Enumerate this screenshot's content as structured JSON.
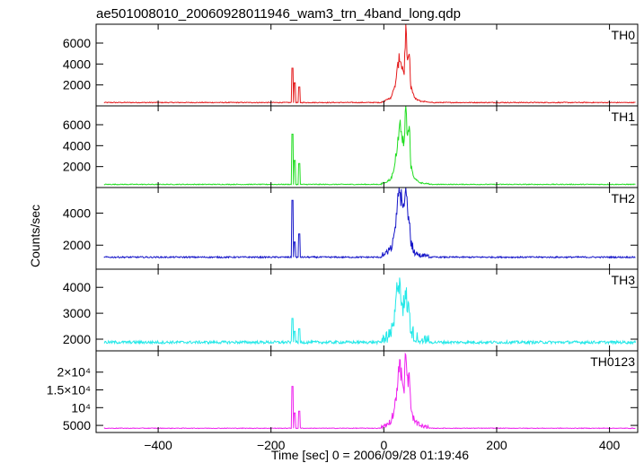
{
  "chart_data": {
    "type": "line",
    "title": "ae501008010_20060928011946_wam3_trn_4band_long.qdp",
    "xlabel": "Time [sec] 0 = 2006/09/28 01:19:46",
    "ylabel": "Counts/sec",
    "xlim": [
      -510,
      450
    ],
    "xticks": [
      -400,
      -200,
      0,
      200,
      400
    ],
    "xtick_labels": [
      "−400",
      "−200",
      "0",
      "200",
      "400"
    ],
    "grid": false,
    "panels": [
      {
        "name": "TH0",
        "color": "#e41a1c",
        "ylim": [
          0,
          7800
        ],
        "yticks": [
          2000,
          4000,
          6000
        ],
        "ytick_labels": [
          "2000",
          "4000",
          "6000"
        ],
        "baseline": 320,
        "noise": 40,
        "spikes": [
          [
            -162,
            3600
          ],
          [
            -158,
            2200
          ],
          [
            -150,
            1800
          ]
        ],
        "burst": [
          [
            -5,
            350
          ],
          [
            5,
            550
          ],
          [
            12,
            800
          ],
          [
            18,
            1500
          ],
          [
            22,
            2600
          ],
          [
            26,
            4200
          ],
          [
            29,
            4700
          ],
          [
            32,
            3800
          ],
          [
            36,
            3200
          ],
          [
            39,
            7800
          ],
          [
            42,
            3800
          ],
          [
            45,
            5000
          ],
          [
            48,
            1800
          ],
          [
            55,
            700
          ],
          [
            65,
            450
          ],
          [
            80,
            380
          ]
        ]
      },
      {
        "name": "TH1",
        "color": "#22dd22",
        "ylim": [
          0,
          7800
        ],
        "yticks": [
          2000,
          4000,
          6000
        ],
        "ytick_labels": [
          "2000",
          "4000",
          "6000"
        ],
        "baseline": 300,
        "noise": 40,
        "spikes": [
          [
            -162,
            5100
          ],
          [
            -158,
            2600
          ],
          [
            -150,
            2300
          ]
        ],
        "burst": [
          [
            -5,
            350
          ],
          [
            5,
            550
          ],
          [
            12,
            800
          ],
          [
            18,
            1600
          ],
          [
            22,
            3300
          ],
          [
            26,
            5000
          ],
          [
            29,
            5900
          ],
          [
            32,
            4600
          ],
          [
            36,
            4300
          ],
          [
            39,
            7800
          ],
          [
            42,
            4500
          ],
          [
            45,
            6200
          ],
          [
            48,
            2000
          ],
          [
            55,
            800
          ],
          [
            65,
            450
          ],
          [
            80,
            360
          ]
        ]
      },
      {
        "name": "TH2",
        "color": "#1515c8",
        "ylim": [
          500,
          5600
        ],
        "yticks": [
          2000,
          4000
        ],
        "ytick_labels": [
          "2000",
          "4000"
        ],
        "baseline": 1250,
        "noise": 45,
        "spikes": [
          [
            -162,
            4800
          ],
          [
            -158,
            2200
          ],
          [
            -150,
            2700
          ]
        ],
        "burst": [
          [
            -5,
            1300
          ],
          [
            5,
            1500
          ],
          [
            12,
            1750
          ],
          [
            18,
            2400
          ],
          [
            22,
            3800
          ],
          [
            26,
            5400
          ],
          [
            29,
            5500
          ],
          [
            32,
            4600
          ],
          [
            36,
            4000
          ],
          [
            39,
            5600
          ],
          [
            42,
            4300
          ],
          [
            45,
            3600
          ],
          [
            48,
            2200
          ],
          [
            55,
            1500
          ],
          [
            65,
            1320
          ],
          [
            80,
            1260
          ]
        ]
      },
      {
        "name": "TH3",
        "color": "#22e8e8",
        "ylim": [
          1550,
          4700
        ],
        "yticks": [
          2000,
          3000,
          4000
        ],
        "ytick_labels": [
          "2000",
          "3000",
          "4000"
        ],
        "baseline": 1880,
        "noise": 55,
        "spikes": [
          [
            -162,
            2800
          ],
          [
            -158,
            2300
          ],
          [
            -150,
            2400
          ]
        ],
        "burst": [
          [
            -5,
            1920
          ],
          [
            5,
            2000
          ],
          [
            12,
            2150
          ],
          [
            18,
            2600
          ],
          [
            22,
            3500
          ],
          [
            26,
            4500
          ],
          [
            29,
            4100
          ],
          [
            32,
            3500
          ],
          [
            36,
            3200
          ],
          [
            39,
            3700
          ],
          [
            42,
            3300
          ],
          [
            45,
            3000
          ],
          [
            48,
            2400
          ],
          [
            55,
            2050
          ],
          [
            65,
            1930
          ],
          [
            80,
            1880
          ]
        ]
      },
      {
        "name": "TH0123",
        "color": "#ee22ee",
        "ylim": [
          3000,
          26000
        ],
        "yticks": [
          5000,
          10000,
          15000,
          20000
        ],
        "ytick_labels": [
          "5000",
          "10⁴",
          "1.5×10⁴",
          "2×10⁴"
        ],
        "baseline": 4200,
        "noise": 90,
        "spikes": [
          [
            -162,
            16000
          ],
          [
            -158,
            8500
          ],
          [
            -150,
            9000
          ]
        ],
        "burst": [
          [
            -5,
            4500
          ],
          [
            5,
            5200
          ],
          [
            12,
            6200
          ],
          [
            18,
            9000
          ],
          [
            22,
            14000
          ],
          [
            26,
            20000
          ],
          [
            29,
            21500
          ],
          [
            32,
            17500
          ],
          [
            36,
            16000
          ],
          [
            39,
            26000
          ],
          [
            42,
            17000
          ],
          [
            45,
            19000
          ],
          [
            48,
            9000
          ],
          [
            55,
            6000
          ],
          [
            65,
            4800
          ],
          [
            80,
            4300
          ]
        ]
      }
    ]
  }
}
